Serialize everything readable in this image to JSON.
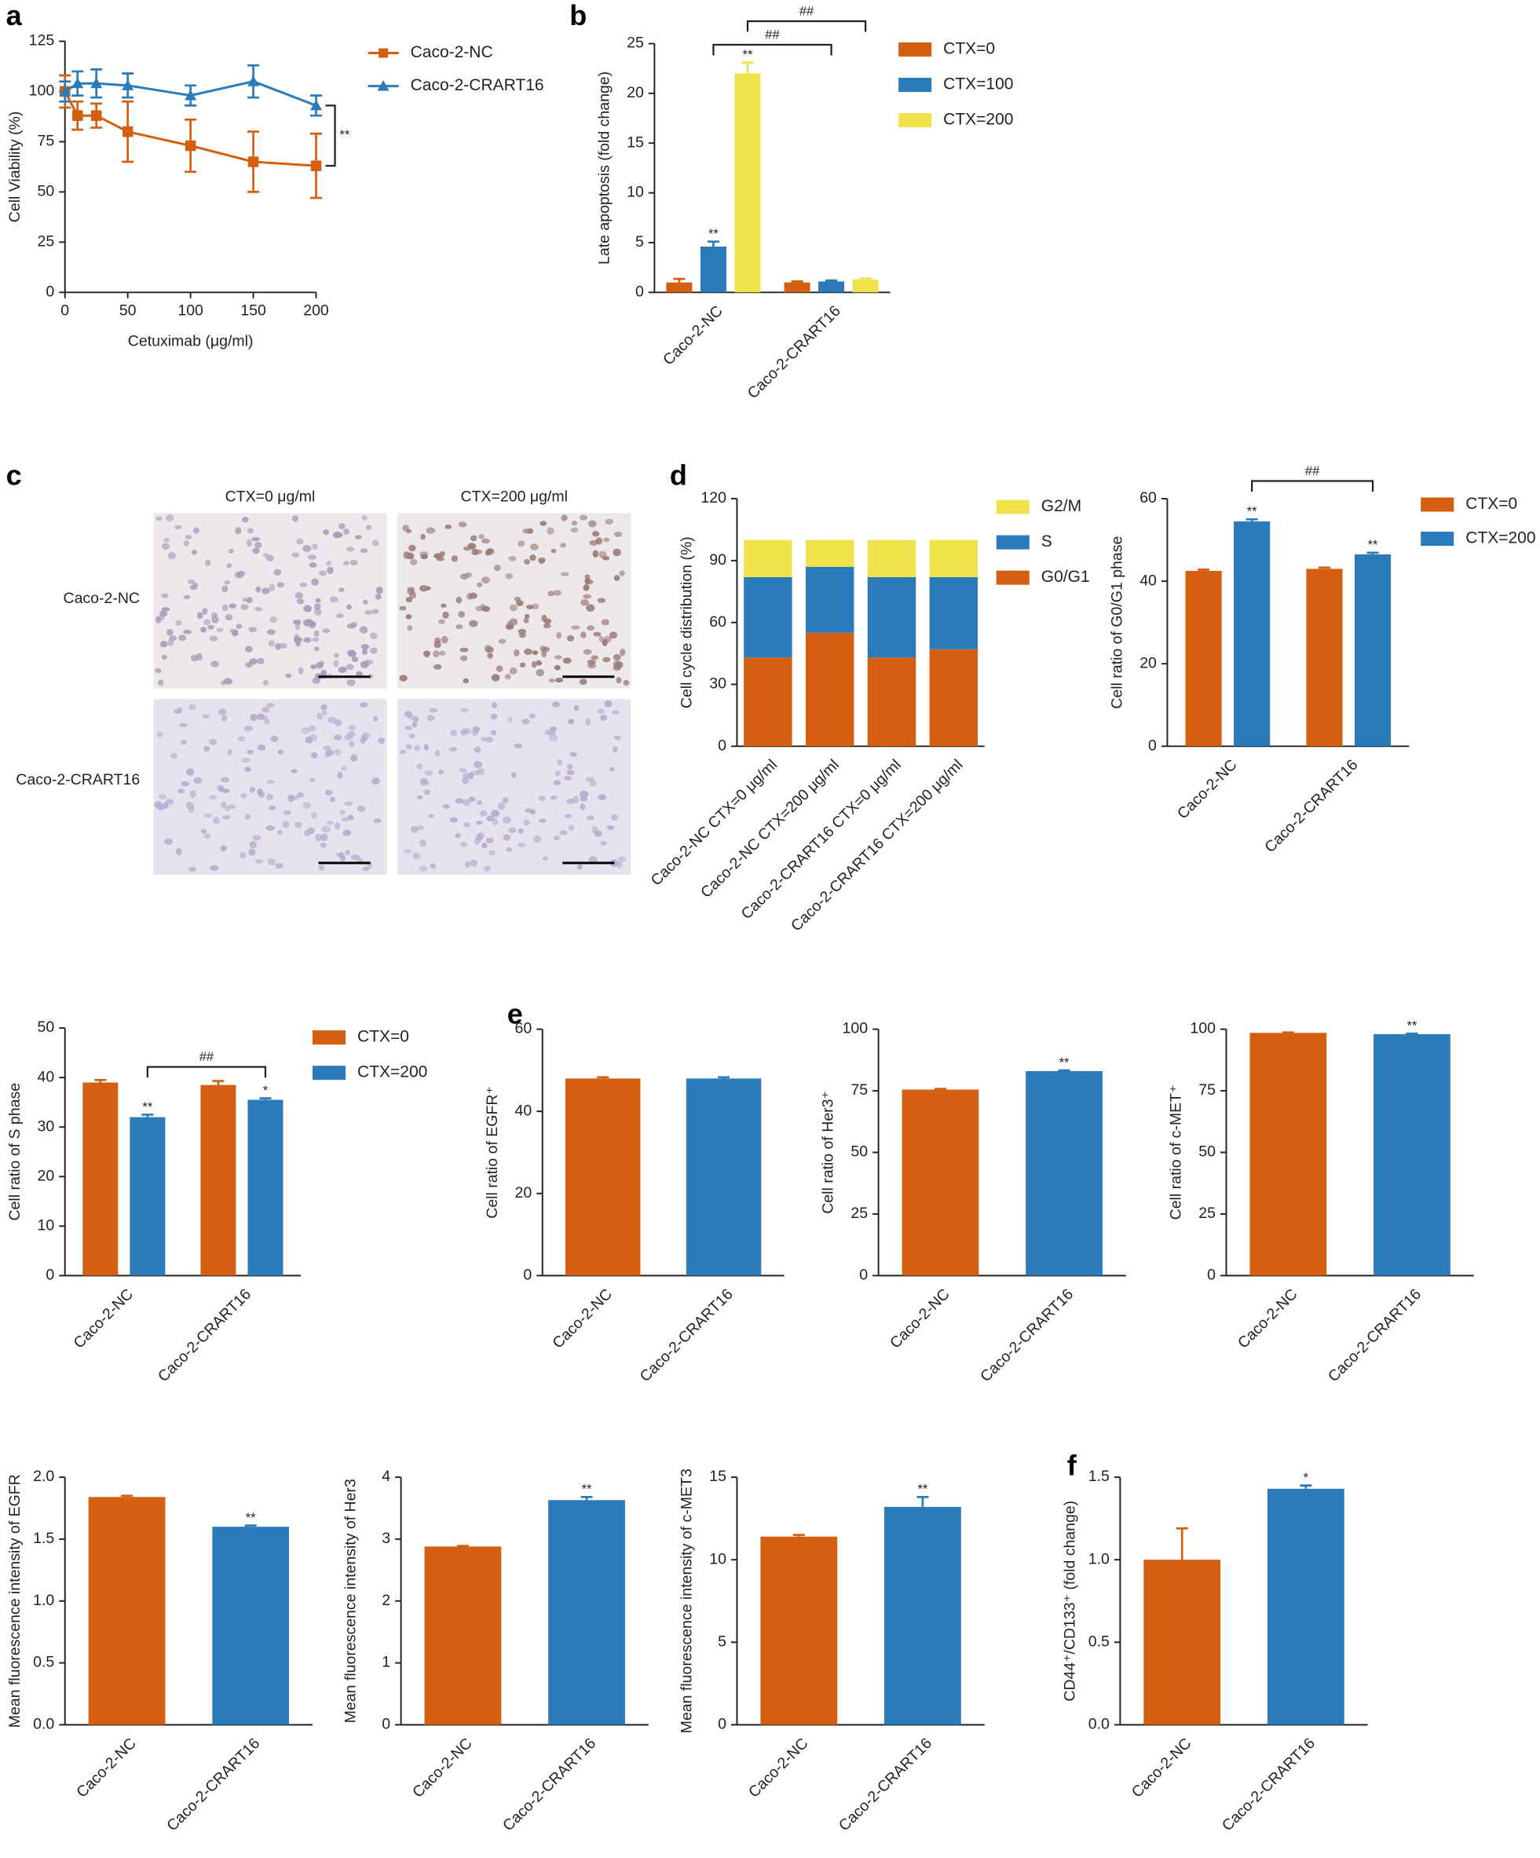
{
  "chart_data": [
    {
      "type": "line",
      "panel": "a",
      "xlabel": "Cetuximab  (μg/ml)",
      "ylabel": "Cell Viability (%)",
      "x": [
        0,
        10,
        25,
        50,
        100,
        150,
        200
      ],
      "xlim": [
        0,
        200
      ],
      "xticks": [
        0,
        50,
        100,
        150,
        200
      ],
      "ylim": [
        0,
        125
      ],
      "yticks": [
        0,
        25,
        50,
        75,
        100,
        125
      ],
      "series": [
        {
          "name": "Caco-2-NC",
          "color": "#d45f10",
          "marker": "square",
          "values": [
            100,
            88,
            88,
            80,
            73,
            65,
            63
          ],
          "errors": [
            8,
            7,
            6,
            15,
            13,
            15,
            16
          ]
        },
        {
          "name": "Caco-2-CRART16",
          "color": "#2b7bba",
          "marker": "triangle",
          "values": [
            100,
            104,
            104,
            103,
            98,
            105,
            93
          ],
          "errors": [
            5,
            6,
            7,
            6,
            5,
            8,
            5
          ]
        }
      ],
      "annotations": [
        "**"
      ]
    },
    {
      "type": "bar",
      "panel": "b",
      "ylabel": "Late apoptosis (fold change)",
      "categories": [
        "Caco-2-NC",
        "Caco-2-CRART16"
      ],
      "ylim": [
        0,
        25
      ],
      "yticks": [
        0,
        5,
        10,
        15,
        20,
        25
      ],
      "series": [
        {
          "name": "CTX=0",
          "color": "#d45f10",
          "values": [
            1.0,
            1.0
          ],
          "errors": [
            0.35,
            0.1
          ],
          "significance": [
            null,
            null
          ]
        },
        {
          "name": "CTX=100",
          "color": "#2b7bba",
          "values": [
            4.6,
            1.1
          ],
          "errors": [
            0.5,
            0.1
          ],
          "significance": [
            "**",
            null
          ]
        },
        {
          "name": "CTX=200",
          "color": "#f0e24a",
          "values": [
            22,
            1.3
          ],
          "errors": [
            1.1,
            0.1
          ],
          "significance": [
            "**",
            null
          ]
        }
      ],
      "annotations": [
        "##",
        "##"
      ]
    },
    {
      "type": "stacked_bar",
      "panel": "d",
      "ylabel": "Cell cycle distribution (%)",
      "categories": [
        "Caco-2-NC CTX=0 μg/ml",
        "Caco-2-NC CTX=200 μg/ml",
        "Caco-2-CRART16 CTX=0 μg/ml",
        "Caco-2-CRART16 CTX=200 μg/ml"
      ],
      "ylim": [
        0,
        120
      ],
      "yticks": [
        0,
        30,
        60,
        90,
        120
      ],
      "series": [
        {
          "name": "G0/G1",
          "color": "#d45f10",
          "values": [
            43,
            55,
            43,
            47
          ]
        },
        {
          "name": "S",
          "color": "#2b7bba",
          "values": [
            39,
            32,
            39,
            35
          ]
        },
        {
          "name": "G2/M",
          "color": "#f0e24a",
          "values": [
            18,
            13,
            18,
            18
          ]
        }
      ]
    },
    {
      "type": "bar",
      "ylabel": "Cell  ratio of G0/G1 phase",
      "categories": [
        "Caco-2-NC",
        "Caco-2-CRART16"
      ],
      "ylim": [
        0,
        60
      ],
      "yticks": [
        0,
        20,
        40,
        60
      ],
      "series": [
        {
          "name": "CTX=0",
          "color": "#d45f10",
          "values": [
            42.5,
            43
          ],
          "errors": [
            0.3,
            0.3
          ],
          "significance": [
            null,
            null
          ]
        },
        {
          "name": "CTX=200",
          "color": "#2b7bba",
          "values": [
            54.5,
            46.5
          ],
          "errors": [
            0.5,
            0.4
          ],
          "significance": [
            "**",
            "**"
          ]
        }
      ],
      "annotations": [
        "##"
      ]
    },
    {
      "type": "bar",
      "ylabel": "Cell  ratio of S phase",
      "categories": [
        "Caco-2-NC",
        "Caco-2-CRART16"
      ],
      "ylim": [
        0,
        50
      ],
      "yticks": [
        0,
        10,
        20,
        30,
        40,
        50
      ],
      "series": [
        {
          "name": "CTX=0",
          "color": "#d45f10",
          "values": [
            39,
            38.5
          ],
          "errors": [
            0.5,
            0.8
          ],
          "significance": [
            null,
            null
          ]
        },
        {
          "name": "CTX=200",
          "color": "#2b7bba",
          "values": [
            32,
            35.5
          ],
          "errors": [
            0.5,
            0.3
          ],
          "significance": [
            "**",
            "*"
          ]
        }
      ],
      "annotations": [
        "##"
      ]
    },
    {
      "type": "bar",
      "panel": "e",
      "ylabel": "Cell ratio of EGFR⁺",
      "categories": [
        "Caco-2-NC",
        "Caco-2-CRART16"
      ],
      "ylim": [
        0,
        60
      ],
      "yticks": [
        0,
        20,
        40,
        60
      ],
      "values": [
        48,
        48
      ],
      "errors": [
        0.3,
        0.3
      ],
      "colors": [
        "#d45f10",
        "#2b7bba"
      ],
      "significance": [
        null,
        null
      ]
    },
    {
      "type": "bar",
      "ylabel": "Cell ratio of Her3⁺",
      "categories": [
        "Caco-2-NC",
        "Caco-2-CRART16"
      ],
      "ylim": [
        0,
        100
      ],
      "yticks": [
        0,
        25,
        50,
        75,
        100
      ],
      "values": [
        75.5,
        83
      ],
      "errors": [
        0.3,
        0.3
      ],
      "colors": [
        "#d45f10",
        "#2b7bba"
      ],
      "significance": [
        null,
        "**"
      ]
    },
    {
      "type": "bar",
      "ylabel": "Cell ratio of c-MET⁺",
      "categories": [
        "Caco-2-NC",
        "Caco-2-CRART16"
      ],
      "ylim": [
        0,
        100
      ],
      "yticks": [
        0,
        25,
        50,
        75,
        100
      ],
      "values": [
        98.5,
        98
      ],
      "errors": [
        0.2,
        0.2
      ],
      "colors": [
        "#d45f10",
        "#2b7bba"
      ],
      "significance": [
        null,
        "**"
      ]
    },
    {
      "type": "bar",
      "ylabel": "Mean fluorescence intensity of EGFR",
      "categories": [
        "Caco-2-NC",
        "Caco-2-CRART16"
      ],
      "ylim": [
        0,
        2
      ],
      "yticks": [
        {
          "value": 0,
          "label": "0.0"
        },
        0.5,
        {
          "value": 1,
          "label": "1.0"
        },
        1.5,
        {
          "value": 2,
          "label": "2.0"
        }
      ],
      "values": [
        1.84,
        1.6
      ],
      "errors": [
        0.01,
        0.01
      ],
      "colors": [
        "#d45f10",
        "#2b7bba"
      ],
      "significance": [
        null,
        "**"
      ]
    },
    {
      "type": "bar",
      "ylabel": "Mean fluorescence intensity of Her3",
      "categories": [
        "Caco-2-NC",
        "Caco-2-CRART16"
      ],
      "ylim": [
        0,
        4
      ],
      "yticks": [
        0,
        1,
        2,
        3,
        4
      ],
      "values": [
        2.88,
        3.63
      ],
      "errors": [
        0.01,
        0.05
      ],
      "colors": [
        "#d45f10",
        "#2b7bba"
      ],
      "significance": [
        null,
        "**"
      ]
    },
    {
      "type": "bar",
      "ylabel": "Mean fluorescence intensity of c-MET3",
      "categories": [
        "Caco-2-NC",
        "Caco-2-CRART16"
      ],
      "ylim": [
        0,
        15
      ],
      "yticks": [
        0,
        5,
        10,
        15
      ],
      "values": [
        11.4,
        13.2
      ],
      "errors": [
        0.1,
        0.6
      ],
      "colors": [
        "#d45f10",
        "#2b7bba"
      ],
      "significance": [
        null,
        "**"
      ]
    },
    {
      "type": "bar",
      "panel": "f",
      "ylabel": "CD44⁺/CD133⁺ (fold change)",
      "categories": [
        "Caco-2-NC",
        "Caco-2-CRART16"
      ],
      "ylim": [
        0,
        1.5
      ],
      "yticks": [
        {
          "value": 0,
          "label": "0.0"
        },
        0.5,
        {
          "value": 1,
          "label": "1.0"
        },
        1.5
      ],
      "values": [
        1.0,
        1.43
      ],
      "errors": [
        0.19,
        0.02
      ],
      "colors": [
        "#d45f10",
        "#2b7bba"
      ],
      "significance": [
        null,
        "*"
      ]
    }
  ],
  "panel_c": {
    "label": "c",
    "columns": [
      "CTX=0 μg/ml",
      "CTX=200 μg/ml"
    ],
    "rows": [
      "Caco-2-NC",
      "Caco-2-CRART16"
    ]
  }
}
